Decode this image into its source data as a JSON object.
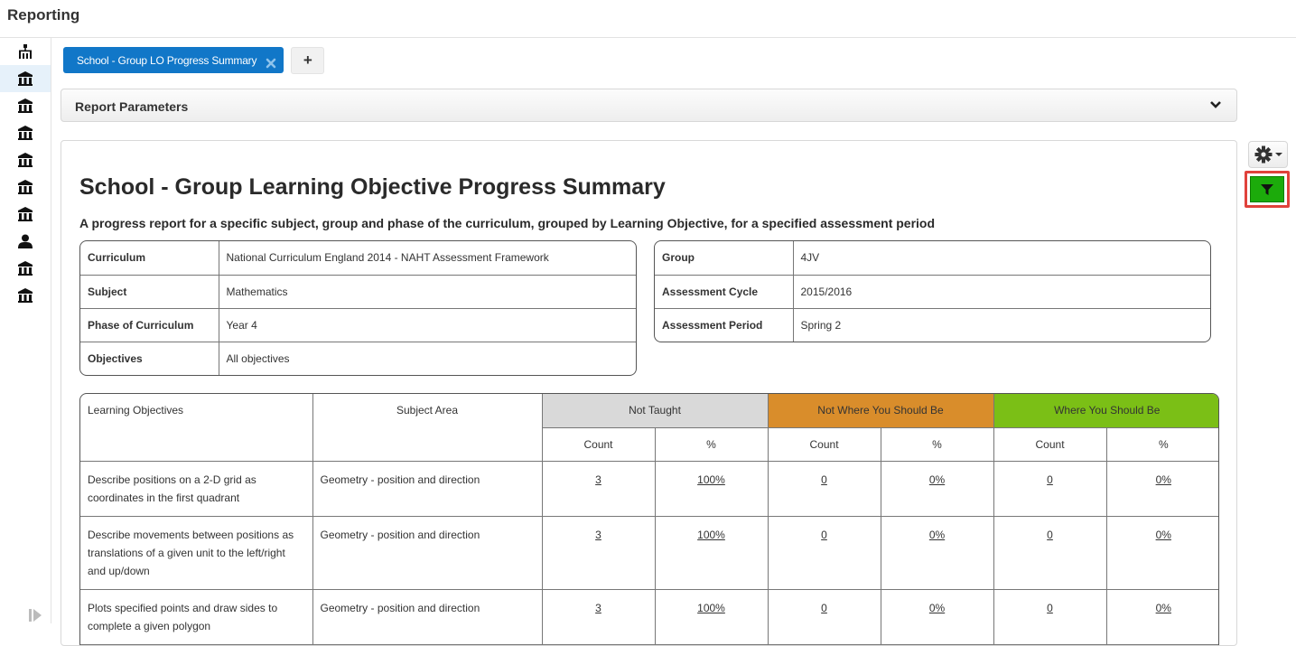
{
  "app": {
    "title": "Reporting"
  },
  "sidebar": {
    "items": [
      {
        "icon": "org-chart-icon"
      },
      {
        "icon": "institution-icon",
        "active": true
      },
      {
        "icon": "institution-icon"
      },
      {
        "icon": "institution-icon"
      },
      {
        "icon": "institution-icon"
      },
      {
        "icon": "institution-icon"
      },
      {
        "icon": "institution-icon"
      },
      {
        "icon": "user-icon"
      },
      {
        "icon": "institution-icon"
      },
      {
        "icon": "institution-icon"
      }
    ]
  },
  "tabs": {
    "active_label": "School - Group LO Progress Summary",
    "add_label": "+"
  },
  "params": {
    "label": "Report Parameters"
  },
  "report": {
    "title": "School - Group Learning Objective Progress Summary",
    "description": "A progress report for a specific subject, group and phase of the curriculum, grouped by Learning Objective, for a specified assessment period",
    "left_info": [
      {
        "key": "Curriculum",
        "value": "National Curriculum England 2014 - NAHT Assessment Framework"
      },
      {
        "key": "Subject",
        "value": "Mathematics"
      },
      {
        "key": "Phase of Curriculum",
        "value": "Year 4"
      },
      {
        "key": "Objectives",
        "value": "All objectives"
      }
    ],
    "right_info": [
      {
        "key": "Group",
        "value": "4JV"
      },
      {
        "key": "Assessment Cycle",
        "value": "2015/2016"
      },
      {
        "key": "Assessment Period",
        "value": "Spring 2"
      }
    ],
    "table": {
      "col_objectives": "Learning Objectives",
      "col_area": "Subject Area",
      "groups": [
        {
          "label": "Not Taught",
          "color": "#d9d9d9"
        },
        {
          "label": "Not Where You Should Be",
          "color": "#d98d2b"
        },
        {
          "label": "Where You Should Be",
          "color": "#7bbf16"
        }
      ],
      "sub_count": "Count",
      "sub_pct": "%",
      "rows": [
        {
          "objective": "Describe positions on a 2-D grid as coordinates in the first quadrant",
          "area": "Geometry - position and direction",
          "values": [
            "3",
            "100%",
            "0",
            "0%",
            "0",
            "0%"
          ]
        },
        {
          "objective": "Describe movements between positions as translations of a given unit to the left/right and up/down",
          "area": "Geometry - position and direction",
          "values": [
            "3",
            "100%",
            "0",
            "0%",
            "0",
            "0%"
          ]
        },
        {
          "objective": "Plots specified points and draw sides to complete a given polygon",
          "area": "Geometry - position and direction",
          "values": [
            "3",
            "100%",
            "0",
            "0%",
            "0",
            "0%"
          ]
        }
      ]
    }
  },
  "toolbar": {
    "gear_icon": "gear-icon",
    "filter_icon": "filter-icon",
    "filter_color": "#1cab0b"
  }
}
